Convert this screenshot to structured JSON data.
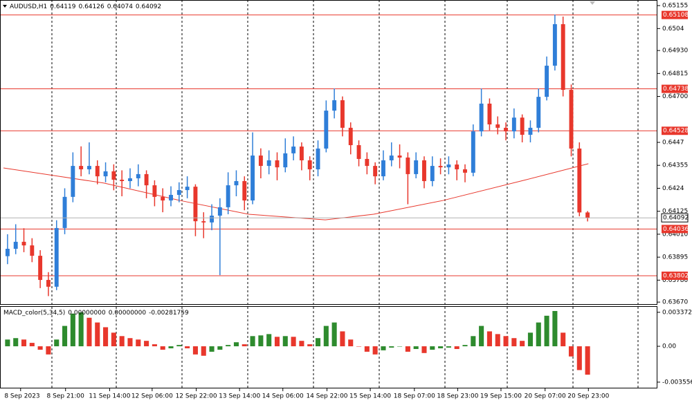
{
  "chart_data": [
    {
      "type": "candlestick",
      "title": "AUDUSD,H1",
      "candles": [
        [
          0.639,
          0.6401,
          0.6386,
          0.63937
        ],
        [
          0.63937,
          0.6406,
          0.6391,
          0.63972
        ],
        [
          0.63972,
          0.6404,
          0.6392,
          0.63954
        ],
        [
          0.63954,
          0.6399,
          0.6387,
          0.63902
        ],
        [
          0.63902,
          0.6393,
          0.6374,
          0.63781
        ],
        [
          0.63781,
          0.6382,
          0.637,
          0.63747
        ],
        [
          0.63747,
          0.6408,
          0.6373,
          0.64041
        ],
        [
          0.64041,
          0.6424,
          0.6401,
          0.64197
        ],
        [
          0.64197,
          0.6442,
          0.6417,
          0.64352
        ],
        [
          0.64352,
          0.6445,
          0.643,
          0.64335
        ],
        [
          0.64335,
          0.6447,
          0.6431,
          0.64352
        ],
        [
          0.64352,
          0.6438,
          0.6426,
          0.643
        ],
        [
          0.643,
          0.6437,
          0.6427,
          0.64325
        ],
        [
          0.64325,
          0.6436,
          0.6423,
          0.64283
        ],
        [
          0.64283,
          0.6433,
          0.642,
          0.64276
        ],
        [
          0.64276,
          0.6434,
          0.6424,
          0.6429
        ],
        [
          0.6429,
          0.6436,
          0.6425,
          0.64311
        ],
        [
          0.64311,
          0.6433,
          0.6419,
          0.64255
        ],
        [
          0.64255,
          0.6428,
          0.6415,
          0.64197
        ],
        [
          0.64197,
          0.6424,
          0.6412,
          0.64179
        ],
        [
          0.64179,
          0.6425,
          0.6415,
          0.64207
        ],
        [
          0.64207,
          0.6427,
          0.6417,
          0.64231
        ],
        [
          0.64231,
          0.643,
          0.6419,
          0.64248
        ],
        [
          0.64248,
          0.6426,
          0.64,
          0.64075
        ],
        [
          0.64075,
          0.6412,
          0.6399,
          0.64069
        ],
        [
          0.64069,
          0.6416,
          0.6403,
          0.64103
        ],
        [
          0.64103,
          0.6419,
          0.63805,
          0.64145
        ],
        [
          0.64145,
          0.6432,
          0.6411,
          0.64255
        ],
        [
          0.64255,
          0.6433,
          0.642,
          0.64276
        ],
        [
          0.64276,
          0.643,
          0.6413,
          0.64179
        ],
        [
          0.64179,
          0.6452,
          0.6416,
          0.64404
        ],
        [
          0.64404,
          0.6444,
          0.6429,
          0.64352
        ],
        [
          0.64352,
          0.6443,
          0.6431,
          0.6438
        ],
        [
          0.6438,
          0.6442,
          0.6428,
          0.64345
        ],
        [
          0.64345,
          0.6449,
          0.6432,
          0.64415
        ],
        [
          0.64415,
          0.645,
          0.6438,
          0.64449
        ],
        [
          0.64449,
          0.6447,
          0.6433,
          0.6438
        ],
        [
          0.6438,
          0.644,
          0.6428,
          0.64335
        ],
        [
          0.64335,
          0.6448,
          0.643,
          0.64439
        ],
        [
          0.64439,
          0.6468,
          0.6442,
          0.64629
        ],
        [
          0.64629,
          0.6474,
          0.6459,
          0.64681
        ],
        [
          0.64681,
          0.647,
          0.645,
          0.64543
        ],
        [
          0.64543,
          0.6457,
          0.6441,
          0.64456
        ],
        [
          0.64456,
          0.6448,
          0.6435,
          0.64387
        ],
        [
          0.64387,
          0.6442,
          0.6431,
          0.64352
        ],
        [
          0.64352,
          0.6437,
          0.6426,
          0.643
        ],
        [
          0.643,
          0.6443,
          0.6428,
          0.6438
        ],
        [
          0.6438,
          0.6447,
          0.6435,
          0.64404
        ],
        [
          0.64404,
          0.6446,
          0.6434,
          0.64394
        ],
        [
          0.64394,
          0.6442,
          0.6416,
          0.64311
        ],
        [
          0.64311,
          0.6442,
          0.6429,
          0.6438
        ],
        [
          0.6438,
          0.644,
          0.6424,
          0.64276
        ],
        [
          0.64276,
          0.644,
          0.6425,
          0.64352
        ],
        [
          0.64352,
          0.6439,
          0.6431,
          0.64345
        ],
        [
          0.64345,
          0.644,
          0.6431,
          0.64359
        ],
        [
          0.64359,
          0.6438,
          0.6428,
          0.64335
        ],
        [
          0.64335,
          0.6436,
          0.6427,
          0.64318
        ],
        [
          0.64318,
          0.6456,
          0.643,
          0.64525
        ],
        [
          0.64525,
          0.6474,
          0.645,
          0.64664
        ],
        [
          0.64664,
          0.6469,
          0.6453,
          0.6456
        ],
        [
          0.6456,
          0.646,
          0.6451,
          0.64543
        ],
        [
          0.64543,
          0.6457,
          0.6448,
          0.64525
        ],
        [
          0.64525,
          0.6464,
          0.6449,
          0.64594
        ],
        [
          0.64594,
          0.6461,
          0.6447,
          0.64508
        ],
        [
          0.64508,
          0.6458,
          0.6447,
          0.64543
        ],
        [
          0.64543,
          0.6474,
          0.6452,
          0.64698
        ],
        [
          0.64698,
          0.649,
          0.6468,
          0.64854
        ],
        [
          0.64854,
          0.6511,
          0.6483,
          0.65062
        ],
        [
          0.65062,
          0.651,
          0.647,
          0.64733
        ],
        [
          0.64733,
          0.6476,
          0.644,
          0.64439
        ],
        [
          0.64439,
          0.6447,
          0.641,
          0.64119
        ],
        [
          0.64119,
          0.64126,
          0.64074,
          0.64092
        ]
      ],
      "up_color": "#2f7ed8",
      "down_color": "#e8372c",
      "ma": {
        "x": [
          0,
          12.3,
          21.6,
          30,
          39.4,
          45.3,
          53.8,
          64,
          71.6
        ],
        "values": [
          0.64342,
          0.64266,
          0.64179,
          0.6411,
          0.64082,
          0.6411,
          0.64179,
          0.64283,
          0.64363
        ],
        "color": "#e8372c"
      },
      "levels": [
        0.65108,
        0.64738,
        0.64528,
        0.64036,
        0.63802
      ],
      "level_color": "#e8372c",
      "xlim": [
        0,
        72
      ],
      "xticks": [
        {
          "value": 2.1,
          "label": "8 Sep 2023"
        },
        {
          "value": 7.6,
          "label": "8 Sep 21:00"
        },
        {
          "value": 13,
          "label": "11 Sep 14:00"
        },
        {
          "value": 18.2,
          "label": "12 Sep 06:00"
        },
        {
          "value": 23.6,
          "label": "12 Sep 22:00"
        },
        {
          "value": 28.9,
          "label": "13 Sep 14:00"
        },
        {
          "value": 34.2,
          "label": "14 Sep 06:00"
        },
        {
          "value": 39.6,
          "label": "14 Sep 22:00"
        },
        {
          "value": 44.9,
          "label": "15 Sep 14:00"
        },
        {
          "value": 50.3,
          "label": "18 Sep 07:00"
        },
        {
          "value": 55.6,
          "label": "18 Sep 23:00"
        },
        {
          "value": 60.9,
          "label": "19 Sep 15:00"
        },
        {
          "value": 66.3,
          "label": "20 Sep 07:00"
        },
        {
          "value": 71.6,
          "label": "20 Sep 23:00"
        }
      ],
      "ylim": [
        0.6366,
        0.65183
      ],
      "yticks": [
        0.65155,
        0.6504,
        {
          "value": 0.6493,
          "label": "0.64930"
        },
        0.64815,
        {
          "value": 0.647,
          "label": "0.64700"
        },
        0.6447,
        0.64355,
        0.6424,
        0.64125,
        {
          "value": 0.6401,
          "label": "0.64010"
        },
        0.63895,
        {
          "value": 0.6378,
          "label": "0.63780"
        },
        {
          "value": 0.6367,
          "label": "0.63670"
        }
      ]
    },
    {
      "type": "bar",
      "title": "MACD_color(5,34,5)",
      "readouts": [
        {
          "value": 0,
          "label": "0.00000000"
        },
        {
          "value": 0,
          "label": "0.00000000"
        }
      ],
      "values": [
        0.00067,
        0.00081,
        0.00067,
        0.00034,
        -0.00034,
        -0.00081,
        0.00067,
        0.00202,
        0.00324,
        0.00337,
        0.00283,
        0.00236,
        0.00189,
        0.00135,
        0.00101,
        0.00081,
        0.00067,
        0.00054,
        0.0002,
        -0.00034,
        -0.0002,
        0.00013,
        -0.0002,
        -0.00081,
        -0.00094,
        -0.00054,
        -0.00034,
        0.00013,
        0.0004,
        0.0002,
        0.00101,
        0.00108,
        0.00121,
        0.00094,
        0.00101,
        0.00094,
        0.00054,
        0.0002,
        0.00081,
        0.00202,
        0.00236,
        0.00148,
        0.00067,
        0,
        -0.00054,
        -0.00081,
        -0.0004,
        -0.00013,
        0,
        -0.00054,
        -0.00027,
        -0.00067,
        -0.00034,
        -0.0002,
        -0.00013,
        -0.00027,
        0.00013,
        0.00101,
        0.00202,
        0.00148,
        0.00121,
        0.00101,
        0.00081,
        0.00054,
        0.00135,
        0.00236,
        0.00303,
        0.0035,
        0.00135,
        -0.00101,
        -0.00236,
        -0.00281759
      ],
      "up_color": "#2e8b2e",
      "down_color": "#e8372c",
      "xlim": [
        0,
        72
      ],
      "ylim": [
        -0.00411,
        0.00391
      ],
      "yticks": [
        0.0033722,
        {
          "value": 0,
          "label": "0.00"
        },
        -0.0035564
      ]
    }
  ]
}
